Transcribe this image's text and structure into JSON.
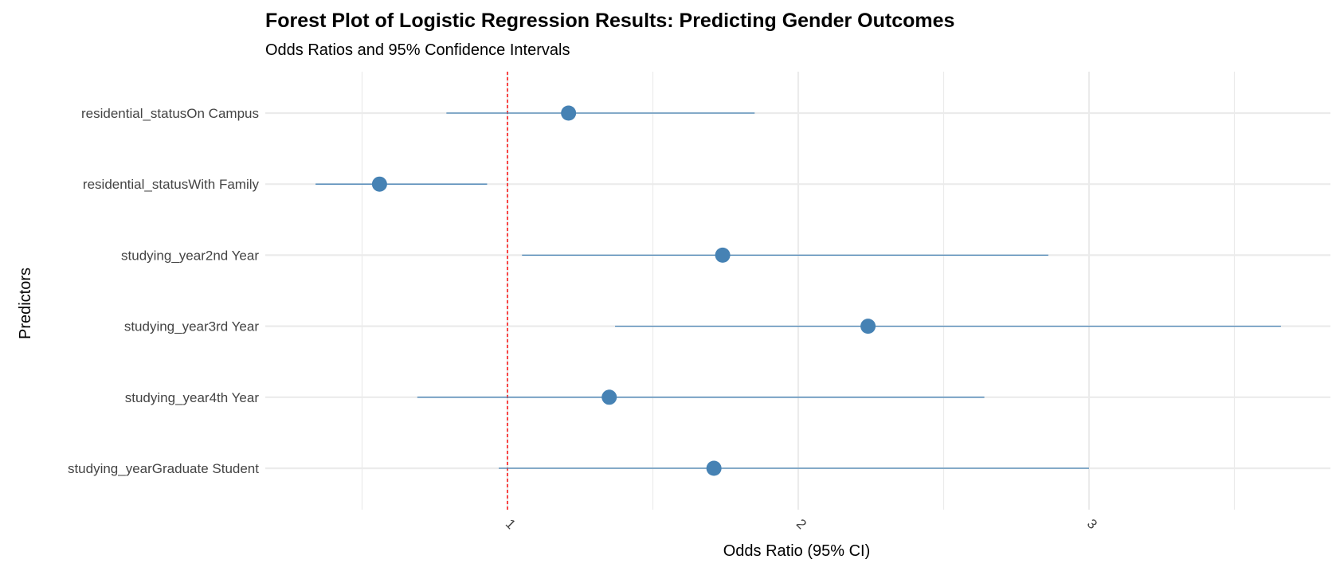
{
  "chart_data": {
    "type": "scatter",
    "title": "Forest Plot of Logistic Regression Results: Predicting Gender Outcomes",
    "subtitle": "Odds Ratios and 95% Confidence Intervals",
    "xlabel": "Odds Ratio (95% CI)",
    "ylabel": "Predictors",
    "xlim": [
      0.3,
      3.85
    ],
    "xticks": [
      1,
      2,
      3
    ],
    "xtick_labels": [
      "1",
      "2",
      "3"
    ],
    "reference_line": 1,
    "grid": true,
    "predictors": [
      {
        "label": "residential_statusOn Campus",
        "or": 1.21,
        "lower": 0.79,
        "upper": 1.85
      },
      {
        "label": "residential_statusWith Family",
        "or": 0.56,
        "lower": 0.34,
        "upper": 0.93
      },
      {
        "label": "studying_year2nd Year",
        "or": 1.74,
        "lower": 1.05,
        "upper": 2.86
      },
      {
        "label": "studying_year3rd Year",
        "or": 2.24,
        "lower": 1.37,
        "upper": 3.66
      },
      {
        "label": "studying_year4th Year",
        "or": 1.35,
        "lower": 0.69,
        "upper": 2.64
      },
      {
        "label": "studying_yearGraduate Student",
        "or": 1.71,
        "lower": 0.97,
        "upper": 3.0
      }
    ],
    "colors": {
      "point": "#4682b4",
      "ci_line": "#4682b4",
      "reference": "#ff0000",
      "grid": "#ebebeb"
    }
  }
}
